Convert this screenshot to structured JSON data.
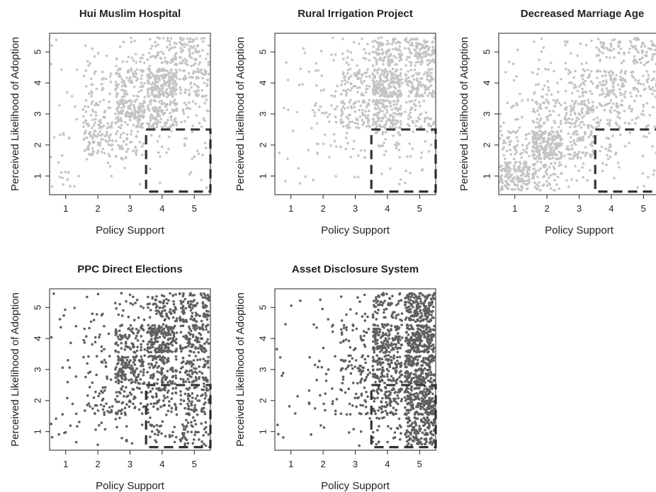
{
  "chart_data": [
    {
      "type": "scatter",
      "title": "Hui Muslim Hospital",
      "xlabel": "Policy Support",
      "ylabel": "Perceived Likelihood of Adoption",
      "xticks": [
        1,
        2,
        3,
        4,
        5
      ],
      "yticks": [
        1,
        2,
        3,
        4,
        5
      ],
      "xlim": [
        0.5,
        5.5
      ],
      "ylim": [
        0.4,
        5.6
      ],
      "point_color": "#c4c4c4",
      "highlight_region": {
        "x": [
          3.5,
          5.5
        ],
        "y": [
          0.5,
          2.5
        ],
        "style": "dashed"
      },
      "cell_counts": [
        [
          12,
          3,
          2,
          2,
          4
        ],
        [
          8,
          70,
          45,
          10,
          12
        ],
        [
          3,
          55,
          140,
          120,
          25
        ],
        [
          4,
          25,
          85,
          190,
          70
        ],
        [
          3,
          8,
          20,
          55,
          75
        ]
      ]
    },
    {
      "type": "scatter",
      "title": "Rural Irrigation Project",
      "xlabel": "Policy Support",
      "ylabel": "Perceived Likelihood of Adoption",
      "xticks": [
        1,
        2,
        3,
        4,
        5
      ],
      "yticks": [
        1,
        2,
        3,
        4,
        5
      ],
      "xlim": [
        0.5,
        5.5
      ],
      "ylim": [
        0.4,
        5.6
      ],
      "point_color": "#c4c4c4",
      "highlight_region": {
        "x": [
          3.5,
          5.5
        ],
        "y": [
          0.5,
          2.5
        ],
        "style": "dashed"
      },
      "cell_counts": [
        [
          4,
          2,
          2,
          4,
          6
        ],
        [
          3,
          12,
          14,
          25,
          12
        ],
        [
          3,
          22,
          75,
          130,
          45
        ],
        [
          4,
          12,
          65,
          190,
          95
        ],
        [
          3,
          6,
          20,
          90,
          110
        ]
      ]
    },
    {
      "type": "scatter",
      "title": "Decreased Marriage Age",
      "xlabel": "Policy Support",
      "ylabel": "Perceived Likelihood of Adoption",
      "xticks": [
        1,
        2,
        3,
        4,
        5
      ],
      "yticks": [
        1,
        2,
        3,
        4,
        5
      ],
      "xlim": [
        0.5,
        5.5
      ],
      "ylim": [
        0.4,
        5.6
      ],
      "point_color": "#c4c4c4",
      "highlight_region": {
        "x": [
          3.5,
          5.5
        ],
        "y": [
          0.5,
          2.5
        ],
        "style": "dashed"
      },
      "cell_counts": [
        [
          160,
          65,
          12,
          6,
          6
        ],
        [
          55,
          210,
          70,
          18,
          8
        ],
        [
          15,
          55,
          85,
          45,
          25
        ],
        [
          4,
          22,
          45,
          85,
          45
        ],
        [
          3,
          6,
          12,
          45,
          65
        ]
      ]
    },
    {
      "type": "scatter",
      "title": "PPC Direct Elections",
      "xlabel": "Policy Support",
      "ylabel": "Perceived Likelihood of Adoption",
      "xticks": [
        1,
        2,
        3,
        4,
        5
      ],
      "yticks": [
        1,
        2,
        3,
        4,
        5
      ],
      "xlim": [
        0.5,
        5.5
      ],
      "ylim": [
        0.4,
        5.6
      ],
      "point_color": "#5f5f5f",
      "highlight_region": {
        "x": [
          3.5,
          5.5
        ],
        "y": [
          0.5,
          2.5
        ],
        "style": "dashed"
      },
      "cell_counts": [
        [
          10,
          5,
          10,
          28,
          48
        ],
        [
          4,
          35,
          55,
          65,
          70
        ],
        [
          5,
          20,
          120,
          95,
          75
        ],
        [
          4,
          15,
          75,
          175,
          95
        ],
        [
          5,
          8,
          20,
          70,
          95
        ]
      ]
    },
    {
      "type": "scatter",
      "title": "Asset Disclosure System",
      "xlabel": "Policy Support",
      "ylabel": "Perceived Likelihood of Adoption",
      "xticks": [
        1,
        2,
        3,
        4,
        5
      ],
      "yticks": [
        1,
        2,
        3,
        4,
        5
      ],
      "xlim": [
        0.5,
        5.5
      ],
      "ylim": [
        0.4,
        5.6
      ],
      "point_color": "#5f5f5f",
      "highlight_region": {
        "x": [
          3.5,
          5.5
        ],
        "y": [
          0.5,
          2.5
        ],
        "style": "dashed"
      },
      "cell_counts": [
        [
          3,
          3,
          5,
          25,
          130
        ],
        [
          3,
          14,
          28,
          95,
          190
        ],
        [
          3,
          10,
          50,
          110,
          190
        ],
        [
          2,
          6,
          30,
          140,
          200
        ],
        [
          2,
          3,
          12,
          65,
          160
        ]
      ]
    }
  ]
}
